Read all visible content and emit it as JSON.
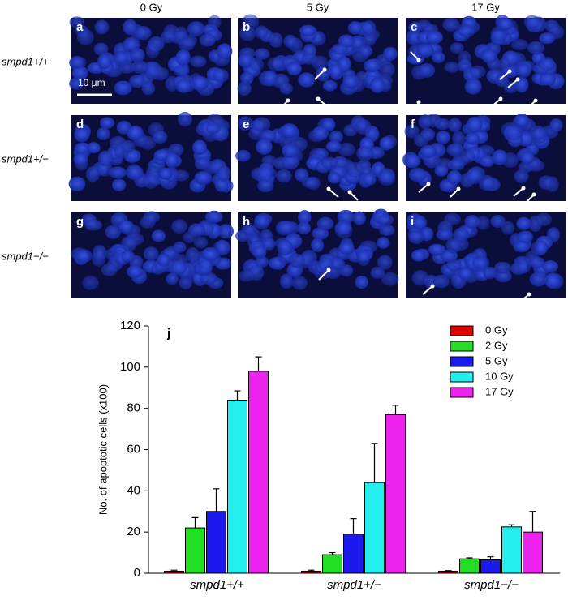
{
  "panels": {
    "column_headers": [
      "0 Gy",
      "5 Gy",
      "17 Gy"
    ],
    "row_labels": [
      "smpd1+/+",
      "smpd1+/−",
      "smpd1−/−"
    ],
    "letters": [
      "a",
      "b",
      "c",
      "d",
      "e",
      "f",
      "g",
      "h",
      "i"
    ],
    "scale_bar": "10 μm"
  },
  "chart_data": {
    "type": "bar",
    "annotation": "j",
    "y_label": "No. of apoptotic cells (x100)",
    "categories": [
      "smpd1+/+",
      "smpd1+/−",
      "smpd1−/−"
    ],
    "series": [
      {
        "name": "0 Gy",
        "color": "#e00000",
        "values": [
          1,
          1,
          1
        ],
        "errors": [
          0.5,
          0.5,
          0.3
        ]
      },
      {
        "name": "2 Gy",
        "color": "#22dd22",
        "values": [
          22,
          9,
          7
        ],
        "errors": [
          5,
          1,
          0.5
        ]
      },
      {
        "name": "5 Gy",
        "color": "#1a1aee",
        "values": [
          30,
          19,
          6.5
        ],
        "errors": [
          11,
          7.5,
          1.5
        ]
      },
      {
        "name": "10 Gy",
        "color": "#22eeee",
        "values": [
          84,
          44,
          22.5
        ],
        "errors": [
          4.5,
          19,
          1
        ]
      },
      {
        "name": "17 Gy",
        "color": "#ee22ee",
        "values": [
          98,
          77,
          20
        ],
        "errors": [
          7,
          4.5,
          10
        ]
      }
    ],
    "ylim": [
      0,
      120
    ],
    "yticks": [
      0,
      20,
      40,
      60,
      80,
      100,
      120
    ],
    "legend": "upper-right"
  }
}
